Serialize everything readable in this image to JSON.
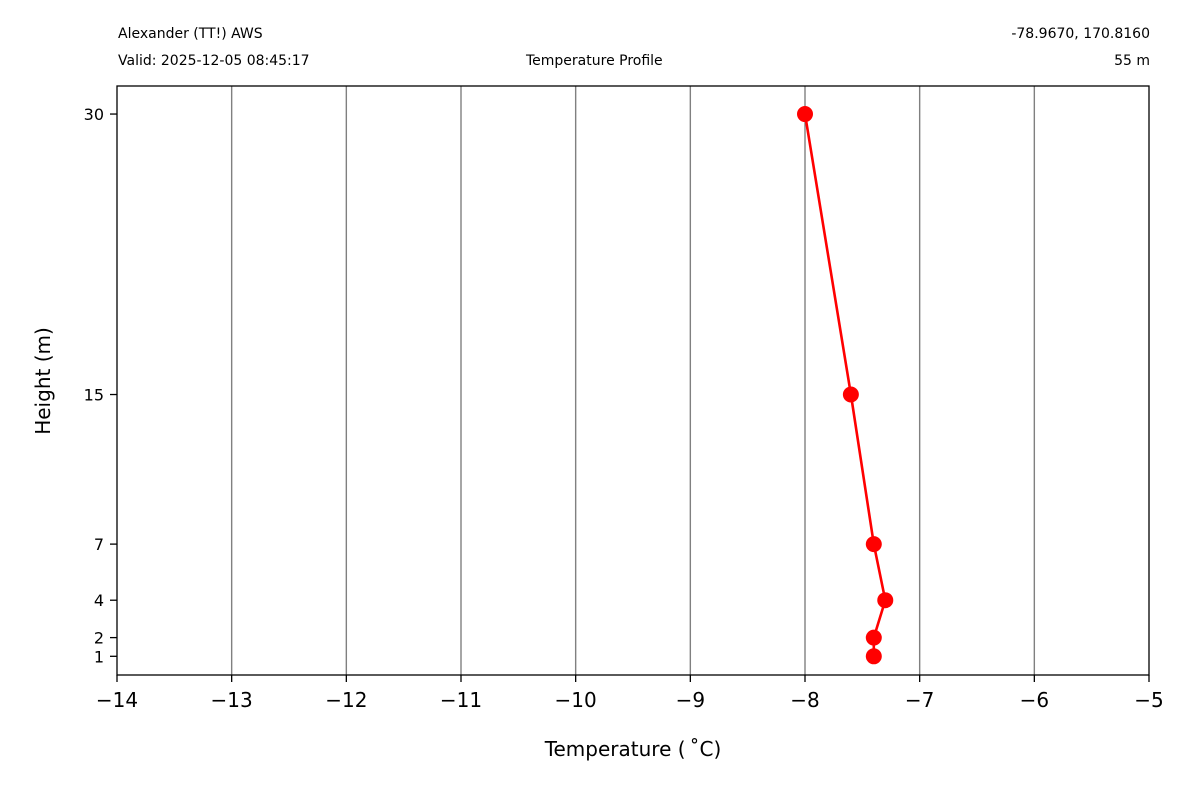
{
  "header": {
    "station_name": "Alexander (TT!) AWS",
    "valid_time": "Valid: 2025-12-05 08:45:17",
    "plot_title": "Temperature Profile",
    "coordinates": "-78.9670, 170.8160",
    "elevation": "55 m"
  },
  "chart_data": {
    "type": "line",
    "xlabel": "Temperature ( ˚C)",
    "ylabel": "Height (m)",
    "xlim": [
      -14,
      -5
    ],
    "ylim": [
      0,
      31.5
    ],
    "xticks": [
      -14,
      -13,
      -12,
      -11,
      -10,
      -9,
      -8,
      -7,
      -6,
      -5
    ],
    "xtick_labels": [
      "−14",
      "−13",
      "−12",
      "−11",
      "−10",
      "−9",
      "−8",
      "−7",
      "−6",
      "−5"
    ],
    "yticks": [
      1,
      2,
      4,
      7,
      15,
      30
    ],
    "ytick_labels": [
      "1",
      "2",
      "4",
      "7",
      "15",
      "30"
    ],
    "grid": "vertical",
    "series": [
      {
        "color": "#ff0000",
        "marker": "circle",
        "x": [
          -7.4,
          -7.4,
          -7.3,
          -7.4,
          -7.6,
          -8.0
        ],
        "y": [
          1,
          2,
          4,
          7,
          15,
          30
        ]
      }
    ]
  }
}
